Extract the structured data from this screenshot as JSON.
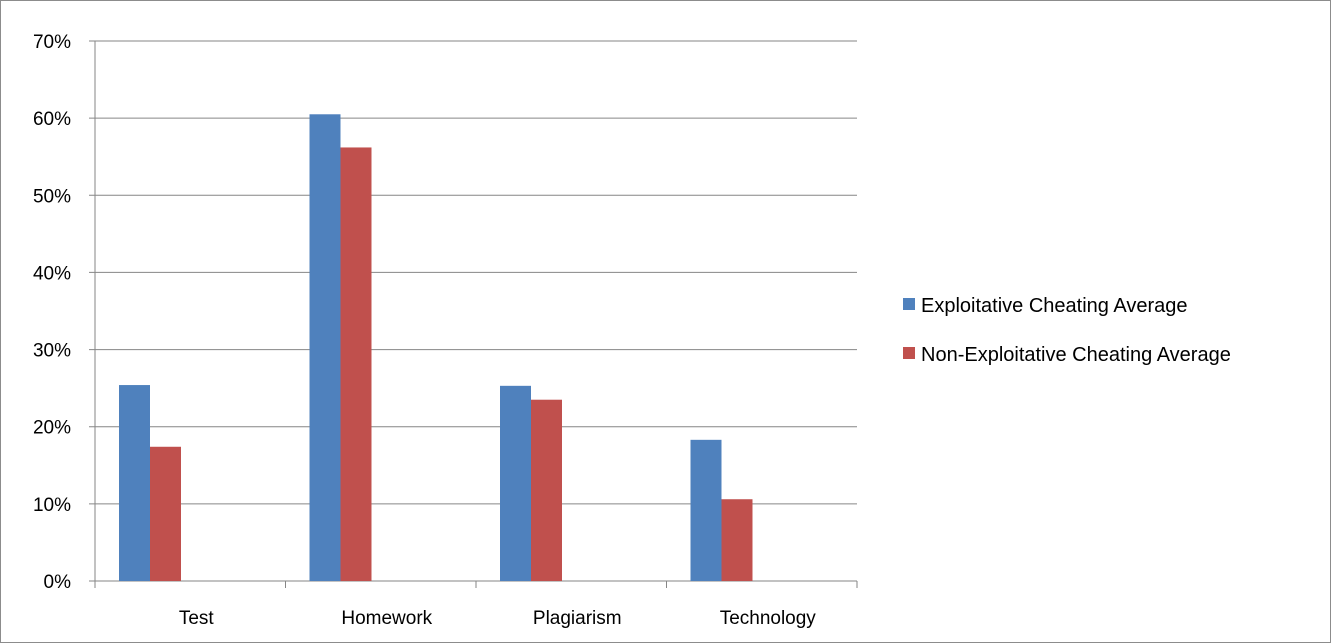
{
  "chart_data": {
    "type": "bar",
    "title": "",
    "xlabel": "",
    "ylabel": "",
    "categories": [
      "Test",
      "Homework",
      "Plagiarism",
      "Technology"
    ],
    "series": [
      {
        "name": "Exploitative Cheating Average",
        "color": "#4F81BD",
        "values": [
          25.4,
          60.5,
          25.3,
          18.3
        ]
      },
      {
        "name": "Non-Exploitative Cheating Average",
        "color": "#C0504D",
        "values": [
          17.4,
          56.2,
          23.5,
          10.6
        ]
      }
    ],
    "ylim": [
      0,
      70
    ],
    "yticks": [
      0,
      10,
      20,
      30,
      40,
      50,
      60,
      70
    ],
    "ytick_labels": [
      "0%",
      "10%",
      "20%",
      "30%",
      "40%",
      "50%",
      "60%",
      "70%"
    ],
    "y_unit": "%",
    "grid": true,
    "legend_position": "right"
  }
}
